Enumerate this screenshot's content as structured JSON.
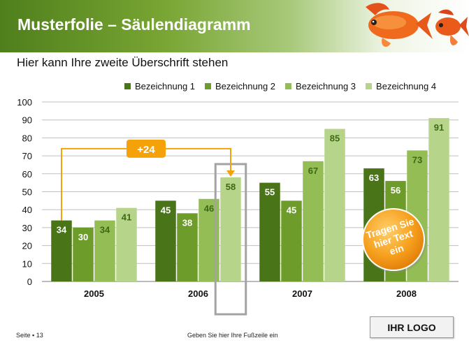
{
  "header": {
    "title": "Musterfolie – Säulendiagramm"
  },
  "subheading": "Hier kann Ihre zweite Überschrift stehen",
  "chart_data": {
    "type": "bar",
    "categories": [
      "2005",
      "2006",
      "2007",
      "2008"
    ],
    "series": [
      {
        "name": "Bezeichnung 1",
        "values": [
          34,
          45,
          55,
          63
        ],
        "color": "#4a7418"
      },
      {
        "name": "Bezeichnung 2",
        "values": [
          30,
          38,
          45,
          56
        ],
        "color": "#6e9c2a"
      },
      {
        "name": "Bezeichnung 3",
        "values": [
          34,
          46,
          67,
          73
        ],
        "color": "#95bd55"
      },
      {
        "name": "Bezeichnung 4",
        "values": [
          41,
          58,
          85,
          91
        ],
        "color": "#b7d58a"
      }
    ],
    "yticks": [
      0,
      10,
      20,
      30,
      40,
      50,
      60,
      70,
      80,
      90,
      100
    ],
    "ylim": [
      0,
      100
    ],
    "grid": true,
    "legend": "top-right",
    "annotations": {
      "difference_label": "+24",
      "difference_from": {
        "category": "2005",
        "series": "Bezeichnung 1"
      },
      "difference_to": {
        "category": "2006",
        "series": "Bezeichnung 4"
      },
      "highlight": {
        "category": "2006",
        "series": "Bezeichnung 4"
      },
      "badge_text": "Tragen Sie hier Text ein"
    }
  },
  "colors": {
    "accent_orange": "#f5a20a",
    "header_green": "#4f7f1c"
  },
  "footer": {
    "page": "Seite ▪ 13",
    "text": "Geben Sie hier Ihre Fußzeile ein"
  },
  "logo": "IHR LOGO"
}
